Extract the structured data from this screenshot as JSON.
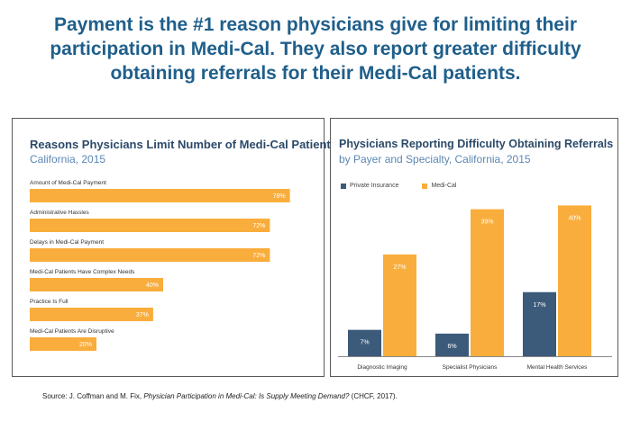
{
  "headline": [
    "Payment is the #1 reason physicians give for limiting their",
    "participation in Medi-Cal. They also report greater difficulty",
    "obtaining referrals for their Medi-Cal patients."
  ],
  "colors": {
    "orange": "#f9ad3c",
    "navy": "#3c5a7a",
    "title": "#1f5f8b"
  },
  "chart_data": [
    {
      "type": "bar",
      "orientation": "horizontal",
      "title": "Reasons Physicians Limit Number of Medi-Cal Patients",
      "subtitle": "California, 2015",
      "categories": [
        "Amount of Medi-Cal Payment",
        "Administrative Hassles",
        "Delays in Medi-Cal Payment",
        "Medi-Cal Patients Have Complex Needs",
        "Practice Is Full",
        "Medi-Cal Patients Are Disruptive"
      ],
      "values": [
        78,
        72,
        72,
        40,
        37,
        20
      ],
      "value_labels": [
        "78%",
        "72%",
        "72%",
        "40%",
        "37%",
        "20%"
      ],
      "xlim": [
        0,
        100
      ],
      "grid": false
    },
    {
      "type": "bar",
      "orientation": "vertical",
      "title": "Physicians Reporting Difficulty Obtaining Referrals",
      "subtitle": "by Payer and Specialty, California, 2015",
      "categories": [
        "Diagnostic Imaging",
        "Specialist Physicians",
        "Mental Health Services"
      ],
      "series": [
        {
          "name": "Private Insurance",
          "values": [
            7,
            6,
            17
          ],
          "value_labels": [
            "7%",
            "6%",
            "17%"
          ]
        },
        {
          "name": "Medi-Cal",
          "values": [
            27,
            39,
            40
          ],
          "value_labels": [
            "27%",
            "39%",
            "40%"
          ]
        }
      ],
      "ylim": [
        0,
        42
      ],
      "legend": "top-left",
      "grid": false
    }
  ],
  "source": {
    "prefix": "Source: J. Coffman and M. Fix, ",
    "title": "Physician Participation in Medi-Cal: Is Supply Meeting Demand?",
    "suffix": " (CHCF, 2017)."
  }
}
